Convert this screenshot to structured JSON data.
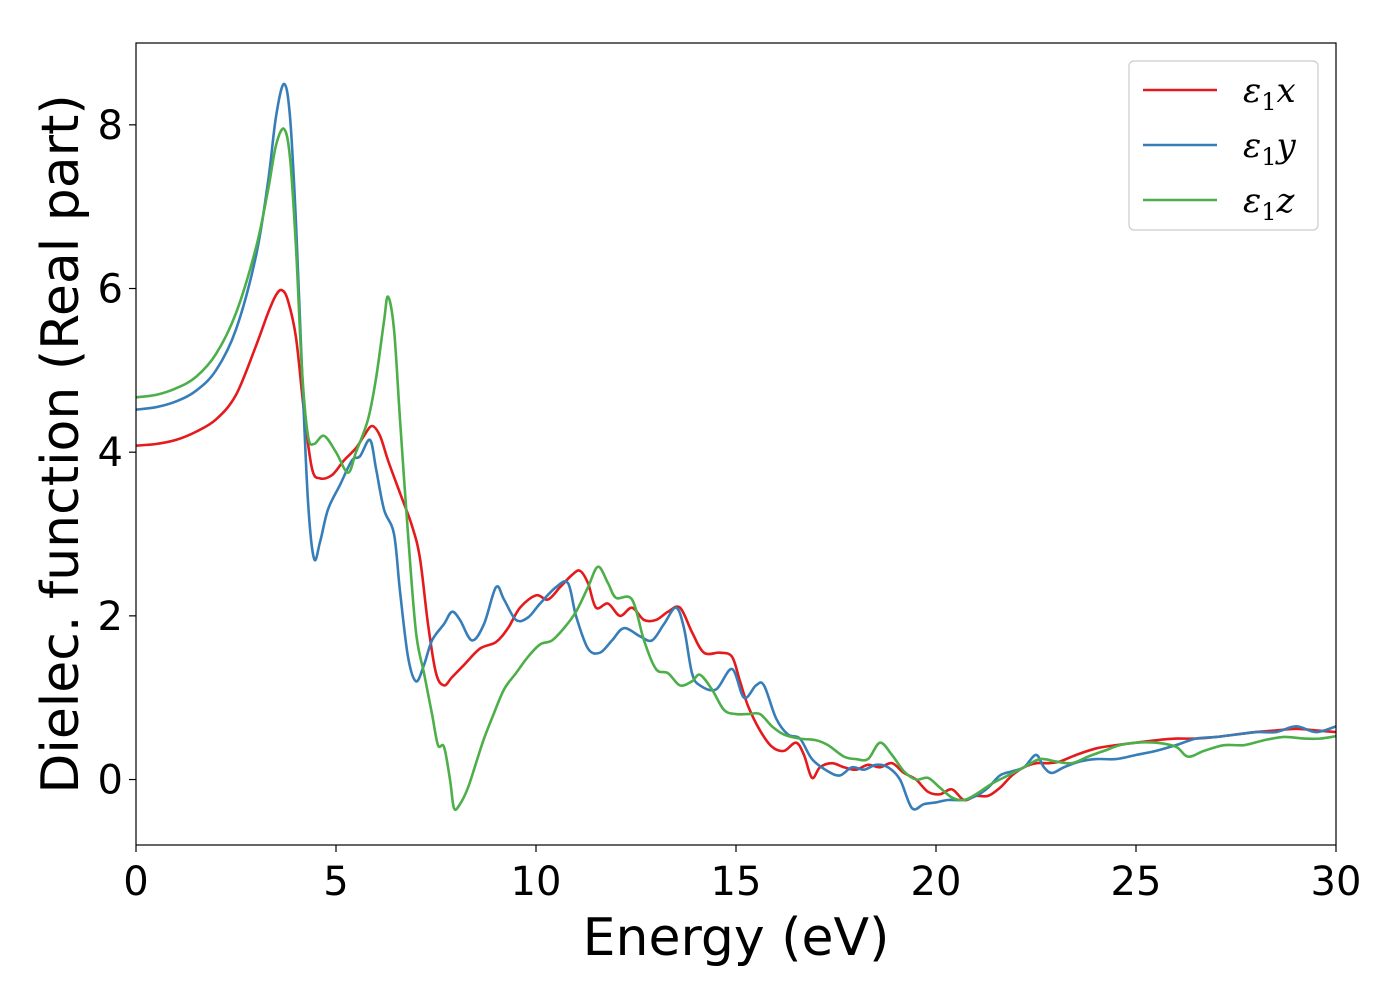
{
  "chart_data": {
    "type": "line",
    "title": "",
    "xlabel": "Energy (eV)",
    "ylabel": "Dielec. function (Real part)",
    "xlim": [
      0,
      30
    ],
    "ylim": [
      -0.8,
      9.0
    ],
    "xticks": [
      0,
      5,
      10,
      15,
      20,
      25,
      30
    ],
    "yticks": [
      0,
      2,
      4,
      6,
      8
    ],
    "grid": false,
    "legend_position": "top-right",
    "series": [
      {
        "name_sym": "ε",
        "name_sub": "1",
        "name_var": "x",
        "color": "#e41a1c",
        "points": [
          [
            0,
            4.08
          ],
          [
            0.5,
            4.1
          ],
          [
            1,
            4.15
          ],
          [
            1.5,
            4.25
          ],
          [
            2,
            4.4
          ],
          [
            2.5,
            4.7
          ],
          [
            3,
            5.3
          ],
          [
            3.3,
            5.7
          ],
          [
            3.5,
            5.92
          ],
          [
            3.65,
            5.98
          ],
          [
            3.8,
            5.85
          ],
          [
            4,
            5.4
          ],
          [
            4.2,
            4.5
          ],
          [
            4.4,
            3.8
          ],
          [
            4.6,
            3.68
          ],
          [
            4.9,
            3.72
          ],
          [
            5.2,
            3.9
          ],
          [
            5.5,
            4.05
          ],
          [
            5.7,
            4.2
          ],
          [
            5.9,
            4.32
          ],
          [
            6.1,
            4.2
          ],
          [
            6.3,
            3.9
          ],
          [
            6.6,
            3.5
          ],
          [
            6.9,
            3.1
          ],
          [
            7.1,
            2.7
          ],
          [
            7.3,
            1.9
          ],
          [
            7.5,
            1.3
          ],
          [
            7.7,
            1.15
          ],
          [
            7.9,
            1.25
          ],
          [
            8.2,
            1.4
          ],
          [
            8.6,
            1.6
          ],
          [
            9,
            1.68
          ],
          [
            9.3,
            1.85
          ],
          [
            9.6,
            2.1
          ],
          [
            10,
            2.25
          ],
          [
            10.3,
            2.2
          ],
          [
            10.6,
            2.35
          ],
          [
            10.9,
            2.5
          ],
          [
            11.1,
            2.55
          ],
          [
            11.3,
            2.4
          ],
          [
            11.5,
            2.1
          ],
          [
            11.8,
            2.15
          ],
          [
            12.1,
            2.0
          ],
          [
            12.4,
            2.1
          ],
          [
            12.7,
            1.95
          ],
          [
            13,
            1.95
          ],
          [
            13.3,
            2.05
          ],
          [
            13.6,
            2.1
          ],
          [
            13.9,
            1.8
          ],
          [
            14.2,
            1.55
          ],
          [
            14.6,
            1.55
          ],
          [
            14.9,
            1.5
          ],
          [
            15.1,
            1.2
          ],
          [
            15.3,
            0.9
          ],
          [
            15.6,
            0.6
          ],
          [
            15.9,
            0.4
          ],
          [
            16.2,
            0.35
          ],
          [
            16.5,
            0.45
          ],
          [
            16.7,
            0.3
          ],
          [
            16.9,
            0.02
          ],
          [
            17.1,
            0.15
          ],
          [
            17.4,
            0.2
          ],
          [
            17.7,
            0.15
          ],
          [
            18,
            0.12
          ],
          [
            18.3,
            0.18
          ],
          [
            18.6,
            0.15
          ],
          [
            18.9,
            0.2
          ],
          [
            19.2,
            0.08
          ],
          [
            19.5,
            0.0
          ],
          [
            19.8,
            -0.15
          ],
          [
            20.1,
            -0.18
          ],
          [
            20.4,
            -0.12
          ],
          [
            20.7,
            -0.25
          ],
          [
            21,
            -0.2
          ],
          [
            21.3,
            -0.2
          ],
          [
            21.6,
            -0.1
          ],
          [
            21.9,
            0.05
          ],
          [
            22.2,
            0.15
          ],
          [
            22.5,
            0.2
          ],
          [
            22.8,
            0.2
          ],
          [
            23.1,
            0.22
          ],
          [
            23.5,
            0.3
          ],
          [
            24,
            0.38
          ],
          [
            24.5,
            0.42
          ],
          [
            25,
            0.45
          ],
          [
            25.5,
            0.48
          ],
          [
            26,
            0.5
          ],
          [
            26.5,
            0.5
          ],
          [
            27,
            0.52
          ],
          [
            27.5,
            0.55
          ],
          [
            28,
            0.58
          ],
          [
            28.5,
            0.6
          ],
          [
            29,
            0.62
          ],
          [
            29.5,
            0.6
          ],
          [
            30,
            0.58
          ]
        ]
      },
      {
        "name_sym": "ε",
        "name_sub": "1",
        "name_var": "y",
        "color": "#377eb8",
        "points": [
          [
            0,
            4.52
          ],
          [
            0.5,
            4.55
          ],
          [
            1,
            4.62
          ],
          [
            1.5,
            4.75
          ],
          [
            2,
            5.0
          ],
          [
            2.5,
            5.5
          ],
          [
            3,
            6.4
          ],
          [
            3.3,
            7.3
          ],
          [
            3.5,
            8.1
          ],
          [
            3.7,
            8.5
          ],
          [
            3.85,
            8.1
          ],
          [
            4,
            6.8
          ],
          [
            4.15,
            5.0
          ],
          [
            4.3,
            3.4
          ],
          [
            4.45,
            2.7
          ],
          [
            4.6,
            2.9
          ],
          [
            4.8,
            3.3
          ],
          [
            5.1,
            3.6
          ],
          [
            5.4,
            3.9
          ],
          [
            5.6,
            3.95
          ],
          [
            5.85,
            4.15
          ],
          [
            6,
            3.8
          ],
          [
            6.2,
            3.3
          ],
          [
            6.45,
            3.0
          ],
          [
            6.6,
            2.3
          ],
          [
            6.8,
            1.5
          ],
          [
            7,
            1.2
          ],
          [
            7.2,
            1.4
          ],
          [
            7.4,
            1.7
          ],
          [
            7.7,
            1.9
          ],
          [
            7.9,
            2.05
          ],
          [
            8.1,
            1.95
          ],
          [
            8.4,
            1.7
          ],
          [
            8.7,
            1.9
          ],
          [
            9,
            2.35
          ],
          [
            9.2,
            2.2
          ],
          [
            9.5,
            1.95
          ],
          [
            9.8,
            1.98
          ],
          [
            10.1,
            2.15
          ],
          [
            10.5,
            2.35
          ],
          [
            10.8,
            2.4
          ],
          [
            11.0,
            2.0
          ],
          [
            11.3,
            1.6
          ],
          [
            11.6,
            1.55
          ],
          [
            11.9,
            1.7
          ],
          [
            12.2,
            1.85
          ],
          [
            12.6,
            1.75
          ],
          [
            12.9,
            1.7
          ],
          [
            13.2,
            1.9
          ],
          [
            13.5,
            2.1
          ],
          [
            13.7,
            1.85
          ],
          [
            13.9,
            1.3
          ],
          [
            14.1,
            1.15
          ],
          [
            14.5,
            1.1
          ],
          [
            14.9,
            1.35
          ],
          [
            15.2,
            1.0
          ],
          [
            15.5,
            1.15
          ],
          [
            15.7,
            1.15
          ],
          [
            16,
            0.75
          ],
          [
            16.3,
            0.55
          ],
          [
            16.6,
            0.5
          ],
          [
            16.9,
            0.25
          ],
          [
            17.3,
            0.1
          ],
          [
            17.6,
            0.05
          ],
          [
            17.9,
            0.15
          ],
          [
            18.2,
            0.12
          ],
          [
            18.5,
            0.18
          ],
          [
            18.8,
            0.15
          ],
          [
            19.1,
            0.0
          ],
          [
            19.4,
            -0.35
          ],
          [
            19.7,
            -0.3
          ],
          [
            20,
            -0.28
          ],
          [
            20.3,
            -0.25
          ],
          [
            20.7,
            -0.25
          ],
          [
            21,
            -0.2
          ],
          [
            21.3,
            -0.1
          ],
          [
            21.6,
            0.05
          ],
          [
            21.9,
            0.1
          ],
          [
            22.2,
            0.15
          ],
          [
            22.5,
            0.3
          ],
          [
            22.7,
            0.15
          ],
          [
            22.9,
            0.08
          ],
          [
            23.2,
            0.15
          ],
          [
            23.6,
            0.22
          ],
          [
            24,
            0.25
          ],
          [
            24.5,
            0.25
          ],
          [
            25,
            0.3
          ],
          [
            25.5,
            0.35
          ],
          [
            26,
            0.42
          ],
          [
            26.5,
            0.5
          ],
          [
            27,
            0.52
          ],
          [
            27.5,
            0.55
          ],
          [
            28,
            0.58
          ],
          [
            28.5,
            0.58
          ],
          [
            29,
            0.65
          ],
          [
            29.5,
            0.58
          ],
          [
            30,
            0.65
          ]
        ]
      },
      {
        "name_sym": "ε",
        "name_sub": "1",
        "name_var": "z",
        "color": "#4daf4a",
        "points": [
          [
            0,
            4.67
          ],
          [
            0.5,
            4.7
          ],
          [
            1,
            4.78
          ],
          [
            1.5,
            4.92
          ],
          [
            2,
            5.2
          ],
          [
            2.5,
            5.7
          ],
          [
            3,
            6.5
          ],
          [
            3.3,
            7.2
          ],
          [
            3.5,
            7.75
          ],
          [
            3.7,
            7.95
          ],
          [
            3.85,
            7.6
          ],
          [
            4,
            6.5
          ],
          [
            4.15,
            5.0
          ],
          [
            4.3,
            4.2
          ],
          [
            4.45,
            4.1
          ],
          [
            4.7,
            4.2
          ],
          [
            5,
            4.0
          ],
          [
            5.3,
            3.75
          ],
          [
            5.5,
            4.0
          ],
          [
            5.8,
            4.4
          ],
          [
            6.0,
            4.9
          ],
          [
            6.2,
            5.6
          ],
          [
            6.3,
            5.9
          ],
          [
            6.45,
            5.5
          ],
          [
            6.6,
            4.4
          ],
          [
            6.8,
            3.0
          ],
          [
            7,
            1.8
          ],
          [
            7.2,
            1.3
          ],
          [
            7.4,
            0.8
          ],
          [
            7.55,
            0.42
          ],
          [
            7.7,
            0.4
          ],
          [
            7.85,
            0.0
          ],
          [
            7.95,
            -0.35
          ],
          [
            8.1,
            -0.3
          ],
          [
            8.3,
            -0.1
          ],
          [
            8.5,
            0.2
          ],
          [
            8.7,
            0.5
          ],
          [
            8.9,
            0.75
          ],
          [
            9.2,
            1.1
          ],
          [
            9.5,
            1.3
          ],
          [
            9.8,
            1.5
          ],
          [
            10.1,
            1.65
          ],
          [
            10.4,
            1.7
          ],
          [
            10.7,
            1.85
          ],
          [
            11.0,
            2.05
          ],
          [
            11.3,
            2.35
          ],
          [
            11.55,
            2.6
          ],
          [
            11.8,
            2.4
          ],
          [
            12.0,
            2.22
          ],
          [
            12.4,
            2.2
          ],
          [
            12.7,
            1.7
          ],
          [
            13,
            1.35
          ],
          [
            13.3,
            1.3
          ],
          [
            13.6,
            1.15
          ],
          [
            13.9,
            1.2
          ],
          [
            14.1,
            1.28
          ],
          [
            14.4,
            1.1
          ],
          [
            14.7,
            0.85
          ],
          [
            15,
            0.8
          ],
          [
            15.3,
            0.8
          ],
          [
            15.6,
            0.8
          ],
          [
            15.9,
            0.65
          ],
          [
            16.2,
            0.55
          ],
          [
            16.6,
            0.5
          ],
          [
            17,
            0.48
          ],
          [
            17.3,
            0.42
          ],
          [
            17.7,
            0.28
          ],
          [
            18,
            0.25
          ],
          [
            18.3,
            0.25
          ],
          [
            18.6,
            0.45
          ],
          [
            18.9,
            0.3
          ],
          [
            19.2,
            0.1
          ],
          [
            19.5,
            0.0
          ],
          [
            19.8,
            0.02
          ],
          [
            20.1,
            -0.1
          ],
          [
            20.4,
            -0.22
          ],
          [
            20.7,
            -0.25
          ],
          [
            21,
            -0.18
          ],
          [
            21.4,
            -0.05
          ],
          [
            21.8,
            0.05
          ],
          [
            22.2,
            0.15
          ],
          [
            22.6,
            0.25
          ],
          [
            23,
            0.22
          ],
          [
            23.4,
            0.2
          ],
          [
            23.8,
            0.28
          ],
          [
            24.2,
            0.35
          ],
          [
            24.6,
            0.42
          ],
          [
            25,
            0.45
          ],
          [
            25.5,
            0.45
          ],
          [
            26,
            0.4
          ],
          [
            26.3,
            0.28
          ],
          [
            26.7,
            0.35
          ],
          [
            27.2,
            0.42
          ],
          [
            27.7,
            0.42
          ],
          [
            28.2,
            0.48
          ],
          [
            28.7,
            0.52
          ],
          [
            29.2,
            0.5
          ],
          [
            29.6,
            0.5
          ],
          [
            30,
            0.53
          ]
        ]
      }
    ]
  }
}
